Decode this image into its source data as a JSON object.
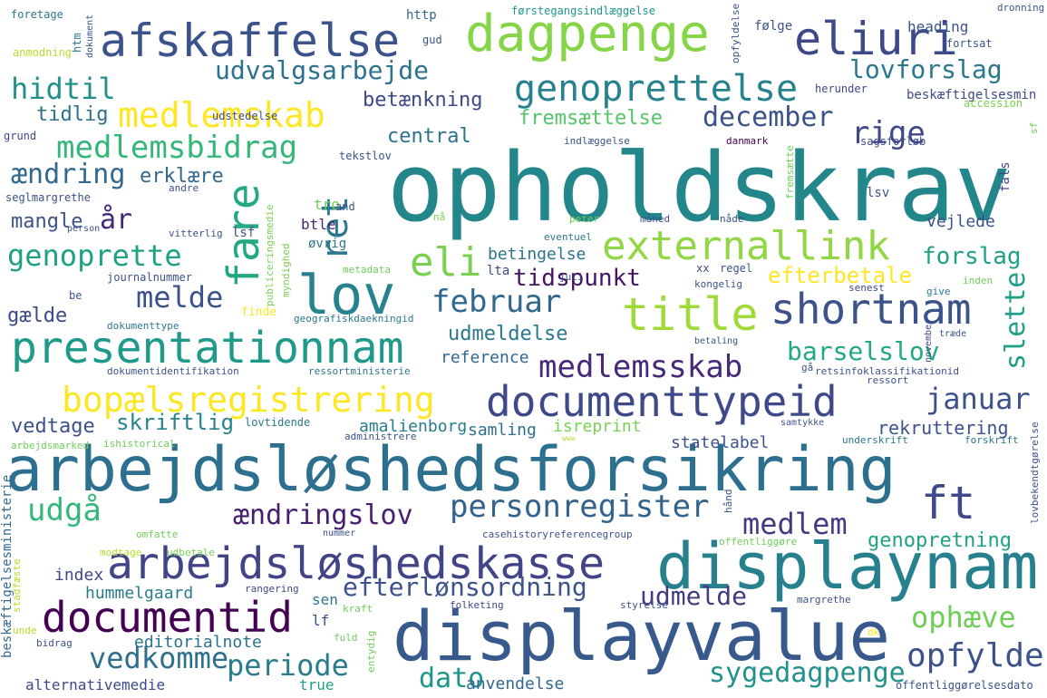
{
  "words": [
    {
      "text": "opholdskrav",
      "color": "#23868a"
    },
    {
      "text": "arbejdsløshedsforsikring",
      "color": "#2d6f8e"
    },
    {
      "text": "displayvalue",
      "color": "#37598c"
    },
    {
      "text": "displaynam",
      "color": "#27808e"
    },
    {
      "text": "afskaffelse",
      "color": "#3b528b"
    },
    {
      "text": "dagpenge",
      "color": "#86d549"
    },
    {
      "text": "eliuri",
      "color": "#3e4989"
    },
    {
      "text": "genoprettelse",
      "color": "#26828e"
    },
    {
      "text": "medlemskab",
      "color": "#fde725"
    },
    {
      "text": "externallink",
      "color": "#90d743"
    },
    {
      "text": "lov",
      "color": "#26828e"
    },
    {
      "text": "presentationnam",
      "color": "#1f9a8a"
    },
    {
      "text": "title",
      "color": "#a0da39"
    },
    {
      "text": "shortnam",
      "color": "#3b528b"
    },
    {
      "text": "documenttypeid",
      "color": "#3e4989"
    },
    {
      "text": "bopælsregistrering",
      "color": "#fde725"
    },
    {
      "text": "arbejdsløshedskasse",
      "color": "#414487"
    },
    {
      "text": "documentid",
      "color": "#440154"
    },
    {
      "text": "medlemsskab",
      "color": "#482878"
    },
    {
      "text": "udvalgsarbejde",
      "color": "#2c728e"
    },
    {
      "text": "lovforslag",
      "color": "#2a788e"
    },
    {
      "text": "hidtil",
      "color": "#21908d"
    },
    {
      "text": "medlemsbidrag",
      "color": "#35b779"
    },
    {
      "text": "eli",
      "color": "#7ad151"
    },
    {
      "text": "fare",
      "color": "#22a884"
    },
    {
      "text": "ret",
      "color": "#2a788e"
    },
    {
      "text": "februar",
      "color": "#31688e"
    },
    {
      "text": "december",
      "color": "#3b528b"
    },
    {
      "text": "rige",
      "color": "#3e4989"
    },
    {
      "text": "ændring",
      "color": "#31688e"
    },
    {
      "text": "genoprette",
      "color": "#1fa187"
    },
    {
      "text": "melde",
      "color": "#3b528b"
    },
    {
      "text": "ft",
      "color": "#3e4989"
    },
    {
      "text": "personregister",
      "color": "#33638d"
    },
    {
      "text": "ændringslov",
      "color": "#481f70"
    },
    {
      "text": "medlem",
      "color": "#443983"
    },
    {
      "text": "udgå",
      "color": "#35b779"
    },
    {
      "text": "efterlønsordning",
      "color": "#3b528b"
    },
    {
      "text": "vedkomme",
      "color": "#2d708e"
    },
    {
      "text": "periode",
      "color": "#287c8e"
    },
    {
      "text": "dato",
      "color": "#1f968b"
    },
    {
      "text": "opfylde",
      "color": "#3b528b"
    },
    {
      "text": "ophæve",
      "color": "#6ece58"
    },
    {
      "text": "udmelde",
      "color": "#443983"
    },
    {
      "text": "sygedagpenge",
      "color": "#21918c"
    },
    {
      "text": "genopretning",
      "color": "#1fa187"
    },
    {
      "text": "barselslov",
      "color": "#22a884"
    },
    {
      "text": "slette",
      "color": "#1f9e89"
    },
    {
      "text": "januar",
      "color": "#3b528b"
    },
    {
      "text": "forslag",
      "color": "#1fa187"
    },
    {
      "text": "efterbetale",
      "color": "#fde725"
    },
    {
      "text": "tidspunkt",
      "color": "#471365"
    },
    {
      "text": "udmeldelse",
      "color": "#2a788e"
    },
    {
      "text": "skriftlig",
      "color": "#26828e"
    },
    {
      "text": "vedtage",
      "color": "#3b528b"
    },
    {
      "text": "betænkning",
      "color": "#3e4989"
    },
    {
      "text": "fremsættelse",
      "color": "#54c568"
    },
    {
      "text": "central",
      "color": "#2c728e"
    },
    {
      "text": "tidlig",
      "color": "#2d708e"
    },
    {
      "text": "erklære",
      "color": "#31688e"
    },
    {
      "text": "mangle",
      "color": "#3b528b"
    },
    {
      "text": "år",
      "color": "#482878"
    },
    {
      "text": "gælde",
      "color": "#3e4989"
    },
    {
      "text": "rekruttering",
      "color": "#3b528b"
    },
    {
      "text": "betingelse",
      "color": "#2c728e"
    },
    {
      "text": "vejlede",
      "color": "#3b528b"
    },
    {
      "text": "amalienborg",
      "color": "#287c8e"
    },
    {
      "text": "samling",
      "color": "#2d708e"
    },
    {
      "text": "isreprint",
      "color": "#7ad151"
    },
    {
      "text": "reference",
      "color": "#31688e"
    },
    {
      "text": "statelabel",
      "color": "#3b528b"
    },
    {
      "text": "index",
      "color": "#3e4989"
    },
    {
      "text": "hummelgaard",
      "color": "#287c8e"
    },
    {
      "text": "editorialnote",
      "color": "#2c728e"
    },
    {
      "text": "anvendelse",
      "color": "#31688e"
    },
    {
      "text": "alternativemedie",
      "color": "#3e4989"
    },
    {
      "text": "true",
      "color": "#1f9e89"
    },
    {
      "text": "sen",
      "color": "#2a788e"
    },
    {
      "text": "lf",
      "color": "#3b528b"
    },
    {
      "text": "lsf",
      "color": "#3b528b"
    },
    {
      "text": "lta",
      "color": "#3e4989"
    },
    {
      "text": "btle",
      "color": "#482878"
    },
    {
      "text": "tro",
      "color": "#6ece58"
    },
    {
      "text": "øvrig",
      "color": "#2a788e"
    },
    {
      "text": "heading",
      "color": "#3b528b"
    },
    {
      "text": "følge",
      "color": "#3b528b"
    },
    {
      "text": "beskæftigelsesmin",
      "color": "#3e4989"
    },
    {
      "text": "http",
      "color": "#31688e"
    },
    {
      "text": "førstegangsindlæggelse",
      "color": "#1f968b"
    },
    {
      "text": "dronning",
      "color": "#3b528b"
    },
    {
      "text": "fortsat",
      "color": "#3b528b"
    },
    {
      "text": "herunder",
      "color": "#3e4989"
    },
    {
      "text": "accession",
      "color": "#7ad151"
    },
    {
      "text": "foretage",
      "color": "#2a788e"
    },
    {
      "text": "htm",
      "color": "#2a788e"
    },
    {
      "text": "dokument",
      "color": "#3b528b"
    },
    {
      "text": "anmodning",
      "color": "#b5de2b"
    },
    {
      "text": "gud",
      "color": "#3b528b"
    },
    {
      "text": "opfyldelse",
      "color": "#3b528b"
    },
    {
      "text": "udstedelse",
      "color": "#3e4989"
    },
    {
      "text": "grund",
      "color": "#3e4989"
    },
    {
      "text": "indlæggelse",
      "color": "#3b528b"
    },
    {
      "text": "danmark",
      "color": "#440154"
    },
    {
      "text": "sagsforløb",
      "color": "#3e4989"
    },
    {
      "text": "sf",
      "color": "#6ece58"
    },
    {
      "text": "tekstlov",
      "color": "#3b528b"
    },
    {
      "text": "seglmargrethe",
      "color": "#3b528b"
    },
    {
      "text": "andre",
      "color": "#3b528b"
    },
    {
      "text": "and",
      "color": "#3b528b"
    },
    {
      "text": "person",
      "color": "#3b528b"
    },
    {
      "text": "vitterlig",
      "color": "#3b528b"
    },
    {
      "text": "publiceringsmedie",
      "color": "#7ad151"
    },
    {
      "text": "myndighed",
      "color": "#7ad151"
    },
    {
      "text": "nå",
      "color": "#7ad151"
    },
    {
      "text": "peter",
      "color": "#6ece58"
    },
    {
      "text": "måned",
      "color": "#3b528b"
    },
    {
      "text": "nåde",
      "color": "#3b528b"
    },
    {
      "text": "lsv",
      "color": "#3b528b"
    },
    {
      "text": "fals",
      "color": "#3e4989"
    },
    {
      "text": "fremsætte",
      "color": "#6ece58"
    },
    {
      "text": "eventuel",
      "color": "#2a788e"
    },
    {
      "text": "journalnummer",
      "color": "#3b528b"
    },
    {
      "text": "metadata",
      "color": "#6ece58"
    },
    {
      "text": "juli",
      "color": "#3b528b"
    },
    {
      "text": "xx",
      "color": "#3e4989"
    },
    {
      "text": "regel",
      "color": "#3b528b"
    },
    {
      "text": "kongelig",
      "color": "#3b528b"
    },
    {
      "text": "senest",
      "color": "#3e4989"
    },
    {
      "text": "inden",
      "color": "#6ece58"
    },
    {
      "text": "give",
      "color": "#2a788e"
    },
    {
      "text": "be",
      "color": "#3b528b"
    },
    {
      "text": "finde",
      "color": "#fde725"
    },
    {
      "text": "geografiskdaekningid",
      "color": "#2a788e"
    },
    {
      "text": "dokumenttype",
      "color": "#2a788e"
    },
    {
      "text": "betaling",
      "color": "#3b528b"
    },
    {
      "text": "træde",
      "color": "#3b528b"
    },
    {
      "text": "november",
      "color": "#3e4989"
    },
    {
      "text": "dokumentidentifikation",
      "color": "#3b528b"
    },
    {
      "text": "ressortministerie",
      "color": "#2a788e"
    },
    {
      "text": "gå",
      "color": "#3b528b"
    },
    {
      "text": "retsinfoklassifikationid",
      "color": "#3b528b"
    },
    {
      "text": "ressort",
      "color": "#3b528b"
    },
    {
      "text": "lovtidende",
      "color": "#2a788e"
    },
    {
      "text": "samtykke",
      "color": "#3b528b"
    },
    {
      "text": "arbejdsmarked",
      "color": "#6ece58"
    },
    {
      "text": "ishistorical",
      "color": "#6ece58"
    },
    {
      "text": "administrere",
      "color": "#3b528b"
    },
    {
      "text": "www",
      "color": "#b5de2b"
    },
    {
      "text": "underskrift",
      "color": "#2a788e"
    },
    {
      "text": "forskrift",
      "color": "#2a788e"
    },
    {
      "text": "lovbekendtgørelse",
      "color": "#3b528b"
    },
    {
      "text": "beskæftigelsesministerie",
      "color": "#31688e"
    },
    {
      "text": "omfatte",
      "color": "#6ece58"
    },
    {
      "text": "modtage",
      "color": "#b5de2b"
    },
    {
      "text": "udbetale",
      "color": "#7ad151"
    },
    {
      "text": "nummer",
      "color": "#3b528b"
    },
    {
      "text": "casehistoryreferencegroup",
      "color": "#3b528b"
    },
    {
      "text": "offentliggøre",
      "color": "#6ece58"
    },
    {
      "text": "hånd",
      "color": "#3b528b"
    },
    {
      "text": "stadfæste",
      "color": "#b5de2b"
    },
    {
      "text": "rangering",
      "color": "#3e4989"
    },
    {
      "text": "kraft",
      "color": "#6ece58"
    },
    {
      "text": "margrethe",
      "color": "#3b528b"
    },
    {
      "text": "folketing",
      "color": "#3e4989"
    },
    {
      "text": "styrelse",
      "color": "#3b528b"
    },
    {
      "text": "entydig",
      "color": "#6ece58"
    },
    {
      "text": "fuld",
      "color": "#6ece58"
    },
    {
      "text": "dk",
      "color": "#fde725"
    },
    {
      "text": "unde",
      "color": "#b5de2b"
    },
    {
      "text": "bidrag",
      "color": "#3b528b"
    },
    {
      "text": "offentliggørelsesdato",
      "color": "#3b528b"
    }
  ]
}
